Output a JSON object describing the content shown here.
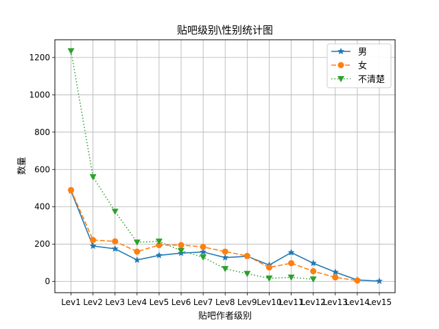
{
  "chart_data": {
    "type": "line",
    "title": "贴吧级别\\性别统计图",
    "xlabel": "贴吧作者级别",
    "ylabel": "数量",
    "categories": [
      "Lev1",
      "Lev2",
      "Lev3",
      "Lev4",
      "Lev5",
      "Lev6",
      "Lev7",
      "Lev8",
      "Lev9",
      "Lev10",
      "Lev11",
      "Lev12",
      "Lev13",
      "Lev14",
      "Lev15"
    ],
    "ylim": [
      -60,
      1295
    ],
    "yticks": [
      0,
      200,
      400,
      600,
      800,
      1000,
      1200
    ],
    "grid": true,
    "legend_position": "top-right",
    "series": [
      {
        "name": "男",
        "color": "#1f77b4",
        "line_style": "solid",
        "marker": "star",
        "values": [
          485,
          190,
          175,
          115,
          140,
          152,
          158,
          128,
          135,
          88,
          155,
          98,
          50,
          8,
          2
        ]
      },
      {
        "name": "女",
        "color": "#ff7f0e",
        "line_style": "dashed",
        "marker": "circle",
        "values": [
          490,
          222,
          215,
          160,
          195,
          195,
          185,
          160,
          137,
          75,
          98,
          55,
          22,
          5,
          null
        ]
      },
      {
        "name": "不清楚",
        "color": "#2ca02c",
        "line_style": "dotted",
        "marker": "triangle-down",
        "values": [
          1235,
          560,
          375,
          210,
          215,
          165,
          130,
          68,
          42,
          17,
          22,
          12,
          null,
          null,
          null
        ]
      }
    ]
  }
}
